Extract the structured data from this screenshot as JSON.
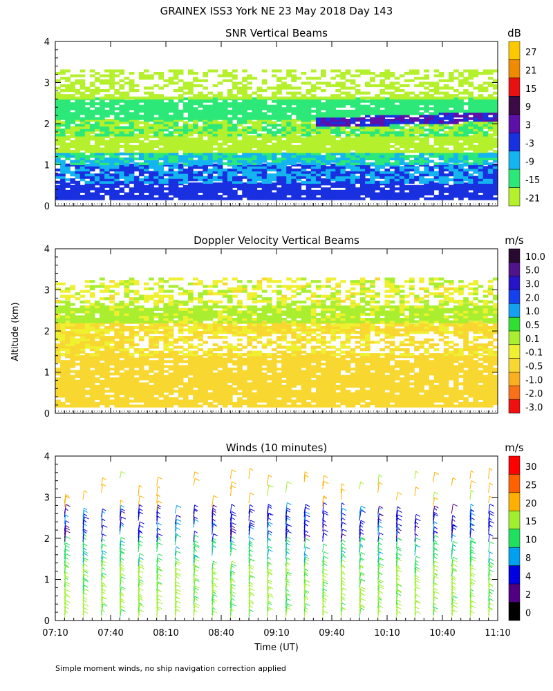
{
  "figure_title": "GRAINEX ISS3 York NE  23 May 2018 Day 143",
  "ylabel": "Altitude (km)",
  "xlabel": "Time (UT)",
  "footnote": "Simple moment winds, no ship navigation correction applied",
  "time_ticks": [
    "07:10",
    "07:40",
    "08:10",
    "08:40",
    "09:10",
    "09:40",
    "10:10",
    "10:40",
    "11:10"
  ],
  "chart_data": [
    {
      "type": "heatmap",
      "title": "SNR Vertical Beams",
      "ylabel": "Altitude (km)",
      "xlabel": "Time (UT)",
      "xlim": [
        0,
        240
      ],
      "ylim": [
        0,
        4
      ],
      "y_ticks": [
        0,
        1,
        2,
        3,
        4
      ],
      "colorbar_unit": "dB",
      "colorbar": {
        "labels": [
          "27",
          "21",
          "15",
          "9",
          "3",
          "-3",
          "-9",
          "-15",
          "-21"
        ],
        "colors": [
          "#fcc800",
          "#f08a00",
          "#e81010",
          "#3c0a44",
          "#5c10a8",
          "#1830e0",
          "#14b4f0",
          "#2ce878",
          "#b4f02c"
        ]
      },
      "layers": [
        {
          "from_km": 0.15,
          "to_km": 0.55,
          "value_dB": 0
        },
        {
          "from_km": 0.55,
          "to_km": 1.0,
          "value_dB": -3
        },
        {
          "from_km": 1.0,
          "to_km": 1.3,
          "value_dB": -9
        },
        {
          "from_km": 1.3,
          "to_km": 1.7,
          "value_dB": -18
        },
        {
          "from_km": 1.7,
          "to_km": 2.1,
          "value_dB": -15
        },
        {
          "from_km": 2.1,
          "to_km": 2.6,
          "value_dB": -12
        },
        {
          "from_km": 2.6,
          "to_km": 3.3,
          "value_dB": -19
        }
      ],
      "features": [
        {
          "name": "elevated layer",
          "start_time_min": 140,
          "end_time_min": 240,
          "altitude_km": 2.0,
          "value_dB": 3
        }
      ]
    },
    {
      "type": "heatmap",
      "title": "Doppler Velocity Vertical Beams",
      "ylabel": "Altitude (km)",
      "xlabel": "Time (UT)",
      "xlim": [
        0,
        240
      ],
      "ylim": [
        0,
        4
      ],
      "y_ticks": [
        0,
        1,
        2,
        3,
        4
      ],
      "colorbar_unit": "m/s",
      "colorbar": {
        "labels": [
          "10.0",
          "5.0",
          "3.0",
          "2.0",
          "1.0",
          "0.5",
          "0.1",
          "-0.1",
          "-0.5",
          "-1.0",
          "-2.0",
          "-3.0"
        ],
        "colors": [
          "#280a30",
          "#50148c",
          "#2814c8",
          "#1440f0",
          "#14a0f0",
          "#30e030",
          "#aaee30",
          "#eef030",
          "#f8d830",
          "#f8b020",
          "#f87018",
          "#f01010"
        ]
      },
      "layers": [
        {
          "from_km": 0.15,
          "to_km": 1.4,
          "value_ms": -0.3
        },
        {
          "from_km": 1.4,
          "to_km": 2.2,
          "value_ms": -0.15
        },
        {
          "from_km": 2.2,
          "to_km": 2.7,
          "value_ms": 0.2
        },
        {
          "from_km": 2.7,
          "to_km": 3.3,
          "value_ms": 0.05
        }
      ]
    },
    {
      "type": "scatter",
      "subtype": "wind_barbs",
      "title": "Winds (10 minutes)",
      "ylabel": "Altitude (km)",
      "xlabel": "Time (UT)",
      "xlim": [
        0,
        240
      ],
      "ylim": [
        0,
        4
      ],
      "y_ticks": [
        0,
        1,
        2,
        3,
        4
      ],
      "colorbar_unit": "m/s",
      "colorbar": {
        "labels": [
          "30",
          "25",
          "20",
          "15",
          "10",
          "8",
          "4",
          "2",
          "0"
        ],
        "colors": [
          "#ff0000",
          "#ff6000",
          "#ffb000",
          "#a0f030",
          "#20e060",
          "#00a0f0",
          "#0000e0",
          "#500080",
          "#000000"
        ]
      },
      "profile_interval_min": 10,
      "profile_count": 24,
      "profiles_speed_kt_by_altitude": [
        {
          "altitude_range_km": [
            0.0,
            1.3
          ],
          "speed_ms": 17
        },
        {
          "altitude_range_km": [
            1.3,
            1.9
          ],
          "speed_ms": 12
        },
        {
          "altitude_range_km": [
            1.9,
            2.6
          ],
          "speed_ms": 6
        },
        {
          "altitude_range_km": [
            2.6,
            3.5
          ],
          "speed_ms": 22
        }
      ]
    }
  ]
}
